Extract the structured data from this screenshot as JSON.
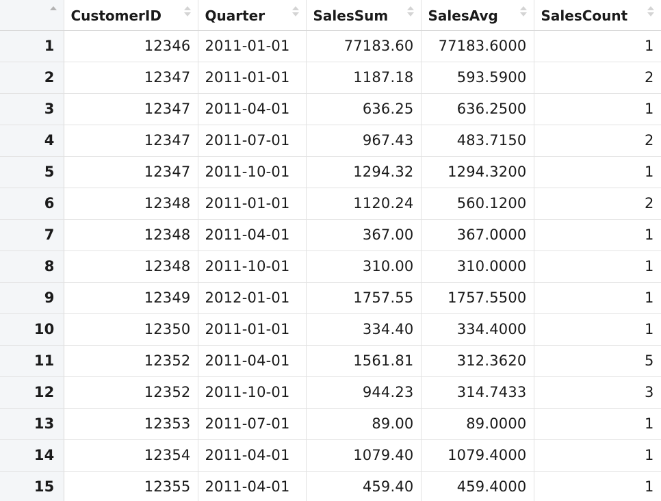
{
  "table": {
    "columns": [
      {
        "label": "CustomerID"
      },
      {
        "label": "Quarter"
      },
      {
        "label": "SalesSum"
      },
      {
        "label": "SalesAvg"
      },
      {
        "label": "SalesCount"
      }
    ],
    "rows": [
      {
        "n": "1",
        "customer_id": "12346",
        "quarter": "2011-01-01",
        "sales_sum": "77183.60",
        "sales_avg": "77183.6000",
        "sales_count": "1"
      },
      {
        "n": "2",
        "customer_id": "12347",
        "quarter": "2011-01-01",
        "sales_sum": "1187.18",
        "sales_avg": "593.5900",
        "sales_count": "2"
      },
      {
        "n": "3",
        "customer_id": "12347",
        "quarter": "2011-04-01",
        "sales_sum": "636.25",
        "sales_avg": "636.2500",
        "sales_count": "1"
      },
      {
        "n": "4",
        "customer_id": "12347",
        "quarter": "2011-07-01",
        "sales_sum": "967.43",
        "sales_avg": "483.7150",
        "sales_count": "2"
      },
      {
        "n": "5",
        "customer_id": "12347",
        "quarter": "2011-10-01",
        "sales_sum": "1294.32",
        "sales_avg": "1294.3200",
        "sales_count": "1"
      },
      {
        "n": "6",
        "customer_id": "12348",
        "quarter": "2011-01-01",
        "sales_sum": "1120.24",
        "sales_avg": "560.1200",
        "sales_count": "2"
      },
      {
        "n": "7",
        "customer_id": "12348",
        "quarter": "2011-04-01",
        "sales_sum": "367.00",
        "sales_avg": "367.0000",
        "sales_count": "1"
      },
      {
        "n": "8",
        "customer_id": "12348",
        "quarter": "2011-10-01",
        "sales_sum": "310.00",
        "sales_avg": "310.0000",
        "sales_count": "1"
      },
      {
        "n": "9",
        "customer_id": "12349",
        "quarter": "2012-01-01",
        "sales_sum": "1757.55",
        "sales_avg": "1757.5500",
        "sales_count": "1"
      },
      {
        "n": "10",
        "customer_id": "12350",
        "quarter": "2011-01-01",
        "sales_sum": "334.40",
        "sales_avg": "334.4000",
        "sales_count": "1"
      },
      {
        "n": "11",
        "customer_id": "12352",
        "quarter": "2011-04-01",
        "sales_sum": "1561.81",
        "sales_avg": "312.3620",
        "sales_count": "5"
      },
      {
        "n": "12",
        "customer_id": "12352",
        "quarter": "2011-10-01",
        "sales_sum": "944.23",
        "sales_avg": "314.7433",
        "sales_count": "3"
      },
      {
        "n": "13",
        "customer_id": "12353",
        "quarter": "2011-07-01",
        "sales_sum": "89.00",
        "sales_avg": "89.0000",
        "sales_count": "1"
      },
      {
        "n": "14",
        "customer_id": "12354",
        "quarter": "2011-04-01",
        "sales_sum": "1079.40",
        "sales_avg": "1079.4000",
        "sales_count": "1"
      },
      {
        "n": "15",
        "customer_id": "12355",
        "quarter": "2011-04-01",
        "sales_sum": "459.40",
        "sales_avg": "459.4000",
        "sales_count": "1"
      }
    ]
  },
  "icons": {
    "row_sort": "sort-asc-icon",
    "column_sort": "sort-both-icon"
  }
}
